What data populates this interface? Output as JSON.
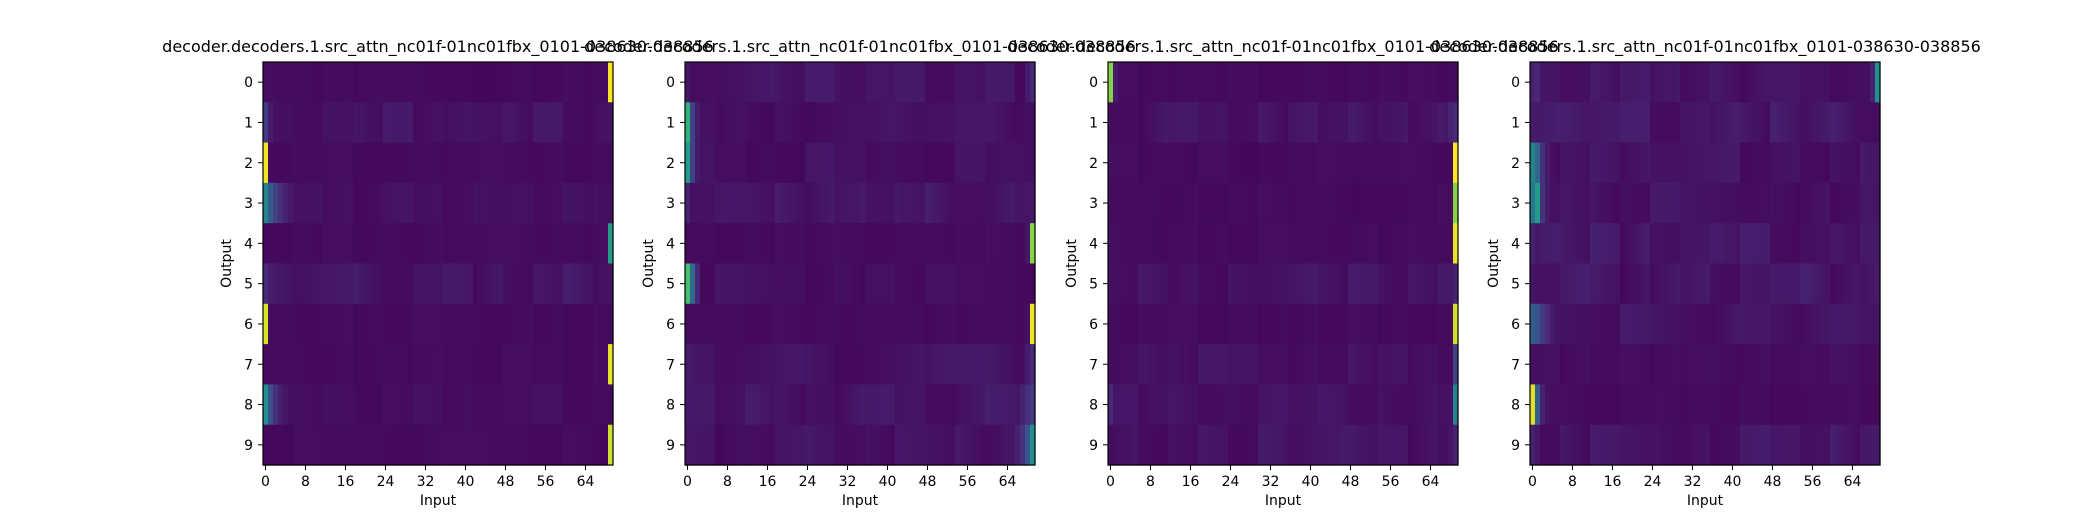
{
  "figure": {
    "colormap": "viridis",
    "axis_frame_color": "#000000"
  },
  "chart_data": [
    {
      "type": "heatmap",
      "title": "decoder.decoders.1.src_attn_nc01f-01nc01fbx_0101-038630-038856",
      "xlabel": "Input",
      "ylabel": "Output",
      "xticks": [
        "0",
        "8",
        "16",
        "24",
        "32",
        "40",
        "48",
        "56",
        "64"
      ],
      "yticks": [
        "0",
        "1",
        "2",
        "3",
        "4",
        "5",
        "6",
        "7",
        "8",
        "9"
      ],
      "n_inputs": 70,
      "n_outputs": 10,
      "base_level": 0.02,
      "rows": [
        {
          "peaks": [
            [
              69,
              1.0
            ]
          ],
          "noise": 0.02
        },
        {
          "peaks": [
            [
              0,
              0.18
            ],
            [
              1,
              0.08
            ],
            [
              2,
              0.05
            ],
            [
              68,
              0.05
            ]
          ],
          "noise": 0.06
        },
        {
          "peaks": [
            [
              0,
              0.98
            ]
          ],
          "noise": 0.02
        },
        {
          "peaks": [
            [
              0,
              0.45
            ],
            [
              1,
              0.3
            ],
            [
              2,
              0.2
            ],
            [
              3,
              0.14
            ],
            [
              4,
              0.1
            ],
            [
              5,
              0.07
            ],
            [
              6,
              0.05
            ]
          ],
          "noise": 0.04
        },
        {
          "peaks": [
            [
              69,
              0.55
            ],
            [
              68,
              0.04
            ]
          ],
          "noise": 0.02
        },
        {
          "peaks": [
            [
              0,
              0.12
            ],
            [
              1,
              0.06
            ]
          ],
          "noise": 0.07
        },
        {
          "peaks": [
            [
              0,
              0.95
            ]
          ],
          "noise": 0.02
        },
        {
          "peaks": [
            [
              69,
              0.97
            ]
          ],
          "noise": 0.02
        },
        {
          "peaks": [
            [
              0,
              0.5
            ],
            [
              1,
              0.25
            ],
            [
              2,
              0.15
            ],
            [
              3,
              0.09
            ],
            [
              4,
              0.06
            ]
          ],
          "noise": 0.03
        },
        {
          "peaks": [
            [
              69,
              0.93
            ]
          ],
          "noise": 0.02
        }
      ]
    },
    {
      "type": "heatmap",
      "title": "decoder.decoders.1.src_attn_nc01f-01nc01fbx_0101-038630-038856",
      "xlabel": "Input",
      "ylabel": "Output",
      "xticks": [
        "0",
        "8",
        "16",
        "24",
        "32",
        "40",
        "48",
        "56",
        "64"
      ],
      "yticks": [
        "0",
        "1",
        "2",
        "3",
        "4",
        "5",
        "6",
        "7",
        "8",
        "9"
      ],
      "n_inputs": 70,
      "n_outputs": 10,
      "base_level": 0.02,
      "rows": [
        {
          "peaks": [
            [
              0,
              0.06
            ],
            [
              68,
              0.08
            ],
            [
              69,
              0.12
            ]
          ],
          "noise": 0.06
        },
        {
          "peaks": [
            [
              0,
              0.65
            ],
            [
              1,
              0.2
            ],
            [
              2,
              0.08
            ]
          ],
          "noise": 0.05
        },
        {
          "peaks": [
            [
              0,
              0.55
            ],
            [
              1,
              0.2
            ],
            [
              2,
              0.08
            ]
          ],
          "noise": 0.05
        },
        {
          "peaks": [
            [
              0,
              0.1
            ]
          ],
          "noise": 0.07
        },
        {
          "peaks": [
            [
              69,
              0.82
            ],
            [
              68,
              0.06
            ]
          ],
          "noise": 0.02
        },
        {
          "peaks": [
            [
              0,
              0.7
            ],
            [
              1,
              0.35
            ],
            [
              2,
              0.12
            ]
          ],
          "noise": 0.04
        },
        {
          "peaks": [
            [
              69,
              0.98
            ],
            [
              68,
              0.05
            ]
          ],
          "noise": 0.02
        },
        {
          "peaks": [
            [
              68,
              0.08
            ],
            [
              69,
              0.12
            ]
          ],
          "noise": 0.06
        },
        {
          "peaks": [
            [
              67,
              0.1
            ],
            [
              68,
              0.14
            ],
            [
              69,
              0.18
            ]
          ],
          "noise": 0.07
        },
        {
          "peaks": [
            [
              66,
              0.1
            ],
            [
              67,
              0.15
            ],
            [
              68,
              0.25
            ],
            [
              69,
              0.5
            ]
          ],
          "noise": 0.06
        }
      ]
    },
    {
      "type": "heatmap",
      "title": "decoder.decoders.1.src_attn_nc01f-01nc01fbx_0101-038630-038856",
      "xlabel": "Input",
      "ylabel": "Output",
      "xticks": [
        "0",
        "8",
        "16",
        "24",
        "32",
        "40",
        "48",
        "56",
        "64"
      ],
      "yticks": [
        "0",
        "1",
        "2",
        "3",
        "4",
        "5",
        "6",
        "7",
        "8",
        "9"
      ],
      "n_inputs": 70,
      "n_outputs": 10,
      "base_level": 0.02,
      "rows": [
        {
          "peaks": [
            [
              0,
              0.82
            ],
            [
              1,
              0.08
            ]
          ],
          "noise": 0.02
        },
        {
          "peaks": [
            [
              68,
              0.1
            ],
            [
              69,
              0.12
            ]
          ],
          "noise": 0.06
        },
        {
          "peaks": [
            [
              69,
              1.0
            ]
          ],
          "noise": 0.02
        },
        {
          "peaks": [
            [
              69,
              0.82
            ]
          ],
          "noise": 0.02
        },
        {
          "peaks": [
            [
              69,
              0.97
            ]
          ],
          "noise": 0.02
        },
        {
          "peaks": [
            [
              68,
              0.06
            ],
            [
              69,
              0.1
            ]
          ],
          "noise": 0.06
        },
        {
          "peaks": [
            [
              69,
              0.93
            ]
          ],
          "noise": 0.02
        },
        {
          "peaks": [
            [
              69,
              0.2
            ]
          ],
          "noise": 0.05
        },
        {
          "peaks": [
            [
              0,
              0.12
            ],
            [
              69,
              0.45
            ]
          ],
          "noise": 0.05
        },
        {
          "peaks": [
            [
              68,
              0.06
            ],
            [
              69,
              0.1
            ]
          ],
          "noise": 0.06
        }
      ]
    },
    {
      "type": "heatmap",
      "title": "decoder.decoders.1.src_attn_nc01f-01nc01fbx_0101-038630-038856",
      "xlabel": "Input",
      "ylabel": "Output",
      "xticks": [
        "0",
        "8",
        "16",
        "24",
        "32",
        "40",
        "48",
        "56",
        "64"
      ],
      "yticks": [
        "0",
        "1",
        "2",
        "3",
        "4",
        "5",
        "6",
        "7",
        "8",
        "9"
      ],
      "n_inputs": 70,
      "n_outputs": 10,
      "base_level": 0.02,
      "rows": [
        {
          "peaks": [
            [
              0,
              0.1
            ],
            [
              1,
              0.12
            ],
            [
              68,
              0.1
            ],
            [
              69,
              0.5
            ]
          ],
          "noise": 0.06
        },
        {
          "peaks": [
            [
              0,
              0.08
            ]
          ],
          "noise": 0.08
        },
        {
          "peaks": [
            [
              0,
              0.45
            ],
            [
              1,
              0.35
            ],
            [
              2,
              0.15
            ],
            [
              3,
              0.08
            ]
          ],
          "noise": 0.06
        },
        {
          "peaks": [
            [
              0,
              0.4
            ],
            [
              1,
              0.55
            ],
            [
              2,
              0.15
            ],
            [
              3,
              0.08
            ]
          ],
          "noise": 0.06
        },
        {
          "peaks": [
            [
              0,
              0.1
            ],
            [
              1,
              0.06
            ]
          ],
          "noise": 0.08
        },
        {
          "peaks": [
            [
              0,
              0.06
            ]
          ],
          "noise": 0.08
        },
        {
          "peaks": [
            [
              0,
              0.3
            ],
            [
              1,
              0.25
            ],
            [
              2,
              0.18
            ],
            [
              3,
              0.12
            ],
            [
              4,
              0.08
            ]
          ],
          "noise": 0.06
        },
        {
          "peaks": [
            [
              0,
              0.04
            ]
          ],
          "noise": 0.03
        },
        {
          "peaks": [
            [
              0,
              0.95
            ],
            [
              1,
              0.3
            ],
            [
              2,
              0.1
            ],
            [
              3,
              0.05
            ]
          ],
          "noise": 0.02
        },
        {
          "peaks": [
            [
              0,
              0.1
            ],
            [
              1,
              0.06
            ]
          ],
          "noise": 0.07
        }
      ]
    }
  ]
}
